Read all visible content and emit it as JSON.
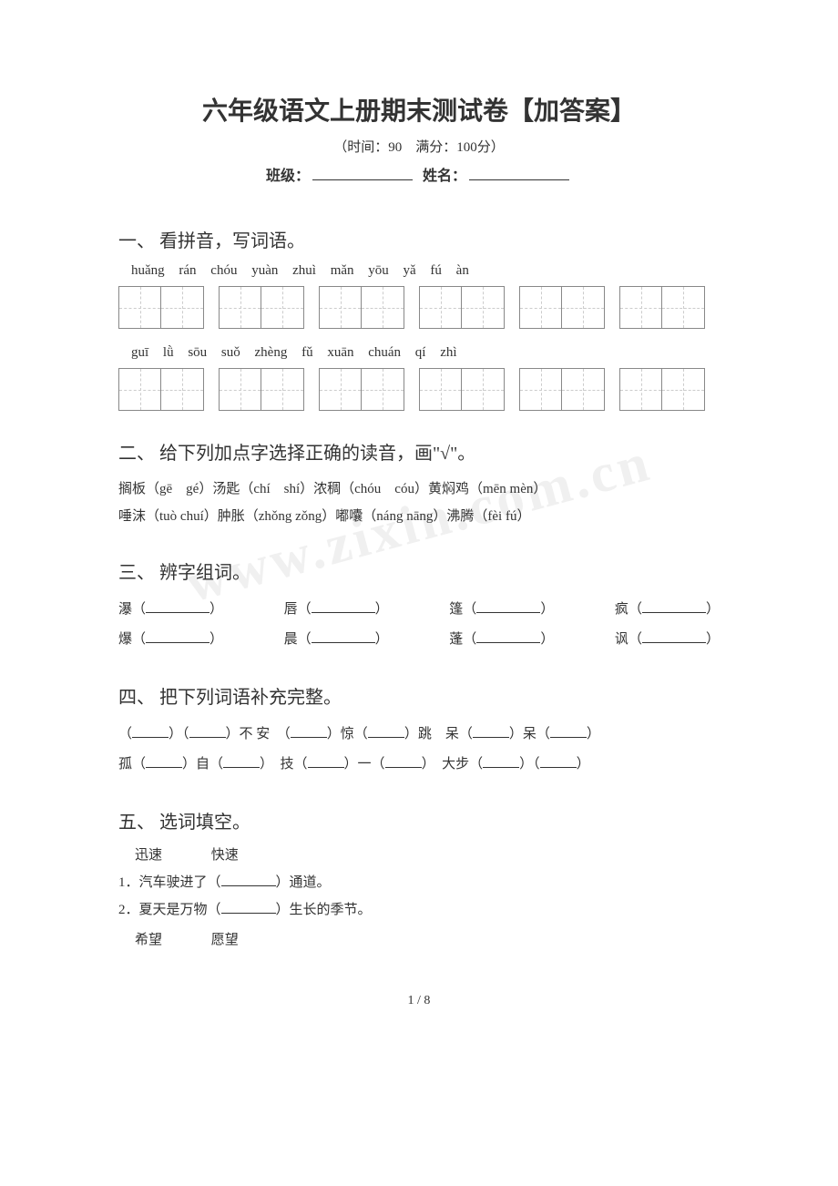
{
  "watermark": "www.zixin.com.cn",
  "header": {
    "title": "六年级语文上册期末测试卷【加答案】",
    "subtitle": "（时间：90　满分：100分）",
    "info_class": "班级：",
    "info_name": "姓名："
  },
  "section1": {
    "heading": "一、 看拼音，写词语。",
    "pinyin_row1": "huǎng rán   chóu yuàn    zhuì mǎn    yōu yǎ       fú àn",
    "pinyin_row2": "guī lǜ      sōu suǒ    zhèng fǔ    xuān chuán    qí zhì"
  },
  "section2": {
    "heading": "二、 给下列加点字选择正确的读音，画\"√\"。",
    "line1": "搁板（gē　gé）汤匙（chí　shí）浓稠（chóu　cóu）黄焖鸡（mēn mèn）",
    "line2": "唾沫（tuò chuí）肿胀（zhǒng zǒng）嘟囔（náng nāng）沸腾（fèi fú）"
  },
  "section3": {
    "heading": "三、 辨字组词。",
    "pairs": [
      [
        "瀑",
        "唇",
        "篷",
        "疯"
      ],
      [
        "爆",
        "晨",
        "蓬",
        "讽"
      ]
    ]
  },
  "section4": {
    "heading": "四、 把下列词语补充完整。",
    "line1_parts": [
      "（",
      "）（",
      "）不 安　（",
      "）惊（",
      "）跳　呆（",
      "）呆（",
      "）"
    ],
    "line2_parts": [
      "孤（",
      "）自（",
      "）　技（",
      "）一（",
      "）　大步（",
      "）（",
      "）"
    ]
  },
  "section5": {
    "heading": "五、 选词填空。",
    "pair1_a": "迅速",
    "pair1_b": "快速",
    "q1": "1．汽车驶进了（",
    "q1_end": "）通道。",
    "q2": "2．夏天是万物（",
    "q2_end": "）生长的季节。",
    "pair2_a": "希望",
    "pair2_b": "愿望"
  },
  "page_num": "1 / 8",
  "colors": {
    "text": "#333333",
    "bg": "#ffffff",
    "box_border": "#888888",
    "box_dash": "#cccccc",
    "watermark": "#f0f0f0"
  }
}
